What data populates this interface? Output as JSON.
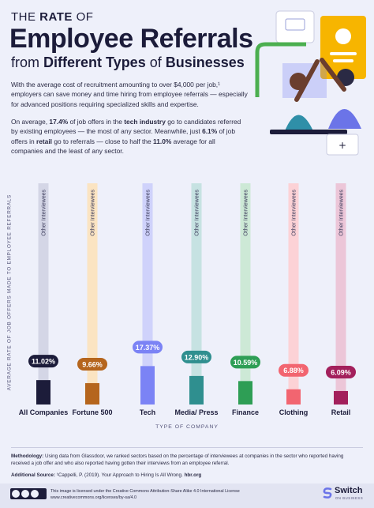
{
  "header": {
    "pre_title_1": "THE",
    "pre_title_2": "RATE",
    "pre_title_3": "OF",
    "title": "Employee Referrals",
    "subtitle_1": "from",
    "subtitle_2": "Different Types",
    "subtitle_3": "of",
    "subtitle_4": "Businesses"
  },
  "intro": {
    "p1": "With the average cost of recruitment amounting to over $4,000 per job,¹ employers can save money and time hiring from employee referrals — especially for advanced positions requiring specialized skills and expertise.",
    "p2_a": "On average,",
    "p2_b": "17.4%",
    "p2_c": "of job offers in the",
    "p2_d": "tech industry",
    "p2_e": "go to candidates referred by existing employees — the most of any sector. Meanwhile, just",
    "p2_f": "6.1%",
    "p2_g": "of job offers in",
    "p2_h": "retail",
    "p2_i": "go to referrals — close to half the",
    "p2_j": "11.0%",
    "p2_k": "average for all companies and the least of any sector."
  },
  "chart_data": {
    "type": "bar",
    "categories": [
      "All Companies",
      "Fortune 500",
      "Tech",
      "Media/ Press",
      "Finance",
      "Clothing",
      "Retail"
    ],
    "values": [
      11.02,
      9.66,
      17.37,
      12.9,
      10.59,
      6.88,
      6.09
    ],
    "value_labels": [
      "11.02%",
      "9.66%",
      "17.37%",
      "12.90%",
      "10.59%",
      "6.88%",
      "6.09%"
    ],
    "background_series_label": "Other Interviewees",
    "ylabel": "AVERAGE RATE OF JOB OFFERS MADE TO EMPLOYEE REFERRALS",
    "xlabel": "TYPE OF COMPANY",
    "ylim": [
      0,
      100
    ],
    "grid": false,
    "bar_colors": [
      "#1c1c3a",
      "#b5651d",
      "#7b83f5",
      "#2f8f8f",
      "#2e9e55",
      "#f26570",
      "#a3205c"
    ],
    "track_colors": [
      "#d4d6e6",
      "#fbe4c2",
      "#cfd2fb",
      "#c6e2e2",
      "#cde9d6",
      "#fcd2d6",
      "#ecc6d8"
    ]
  },
  "footer": {
    "methodology_label": "Methodology:",
    "methodology_text": "Using data from Glassdoor, we ranked sectors based on the percentage of interviewees at companies in the sector who reported having received a job offer and who also reported having gotten their interviews from an employee referral.",
    "source_label": "Additional Source:",
    "source_text": "¹Cappelli, P. (2019). Your Approach to Hiring Is All Wrong.",
    "source_site": "hbr.org",
    "license_line1": "This image is licensed under the Creative Commons Attribution-Share Alike 4.0 International License",
    "license_line2": "www.creativecommons.org/licenses/by-sa/4.0",
    "brand": "Switch",
    "brand_sub": "ON BUSINESS"
  },
  "colors": {
    "background": "#eef0fa",
    "text": "#1c1c3a"
  }
}
